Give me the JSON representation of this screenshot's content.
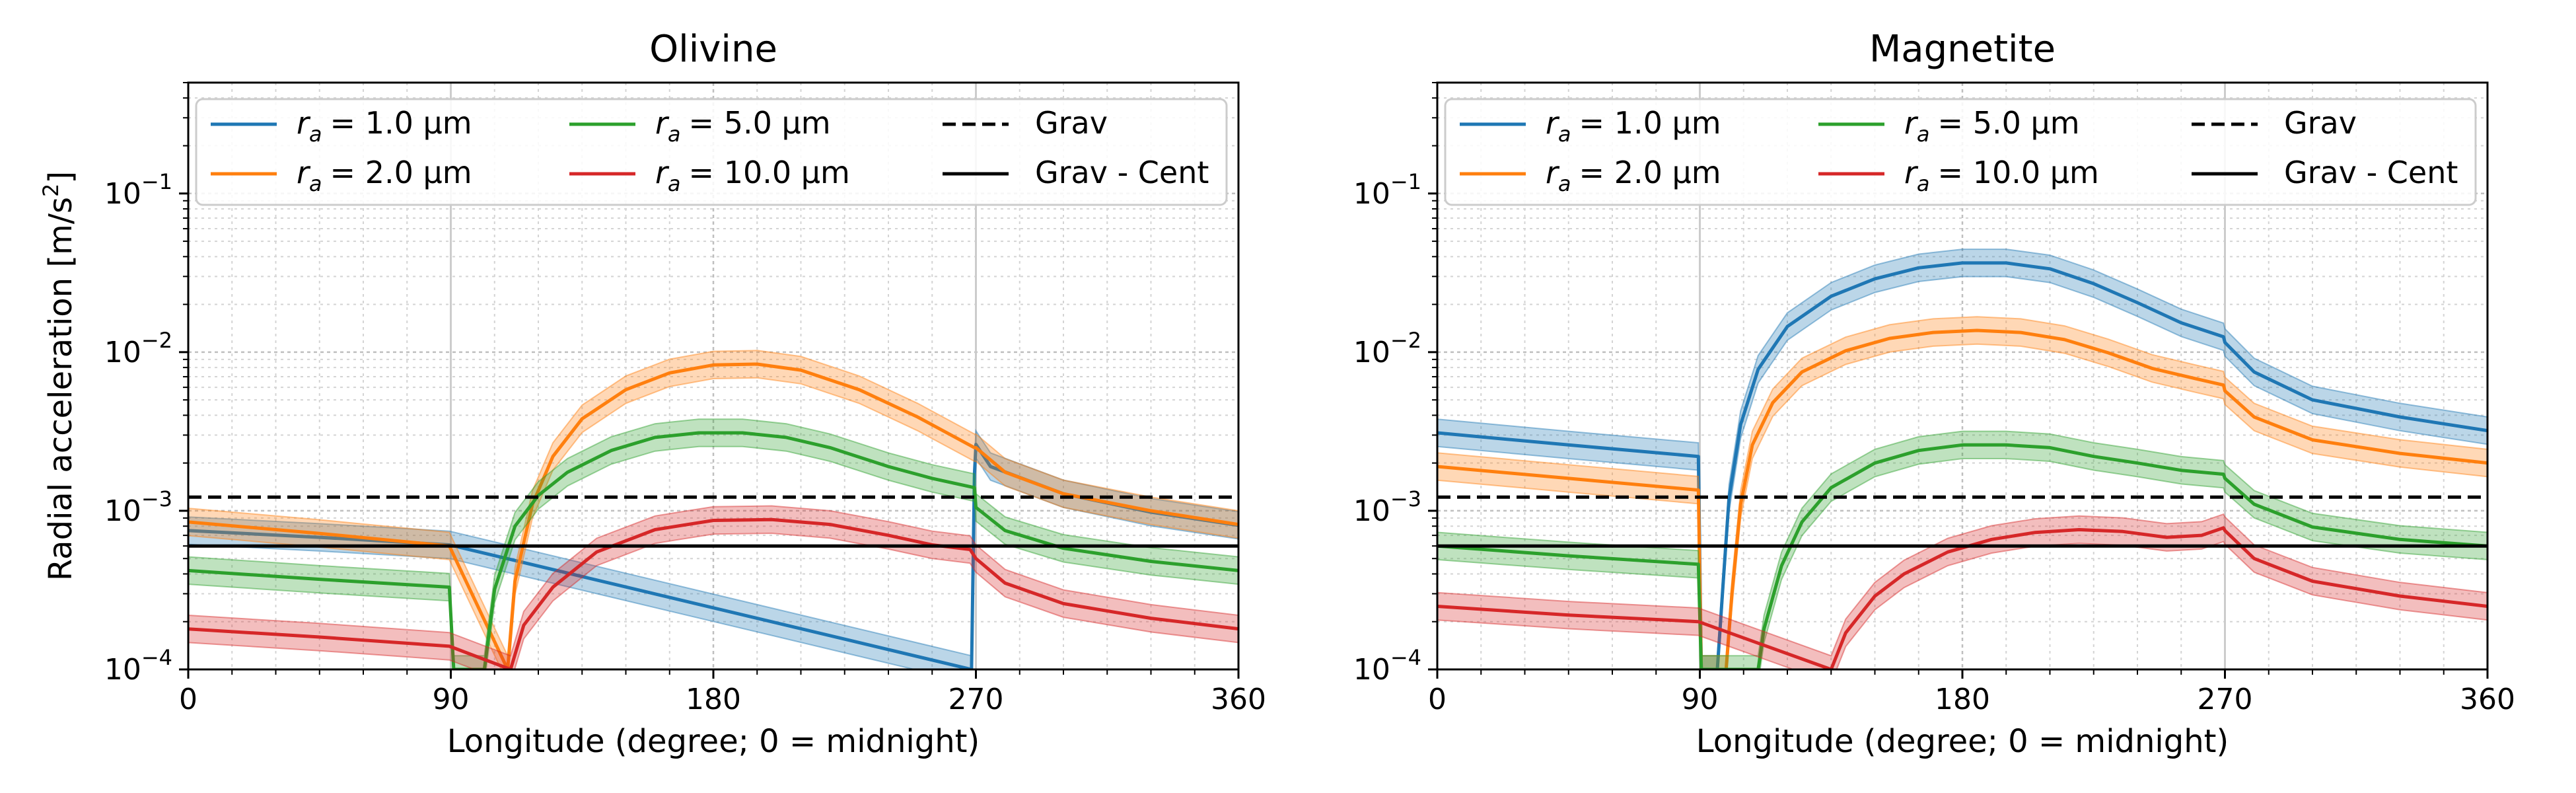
{
  "chart_data": [
    {
      "type": "line",
      "title": "Olivine",
      "xlabel": "Longitude (degree; 0 = midnight)",
      "ylabel": "Radial acceleration [m/s²]",
      "xlim": [
        0,
        360
      ],
      "ylim": [
        0.0001,
        0.5
      ],
      "yscale": "log",
      "xticks": [
        0,
        90,
        180,
        270,
        360
      ],
      "xtick_labels": [
        "0",
        "90",
        "180",
        "270",
        "360"
      ],
      "yticks": [
        0.0001,
        0.001,
        0.01,
        0.1
      ],
      "ytick_labels": [
        {
          "base": "10",
          "exp": "−4"
        },
        {
          "base": "10",
          "exp": "−3"
        },
        {
          "base": "10",
          "exp": "−2"
        },
        {
          "base": "10",
          "exp": "−1"
        }
      ],
      "grid": true,
      "legend_position": "top",
      "grav": 0.00122,
      "grav_cent": 0.0006,
      "series": [
        {
          "name": "r_a = 1.0 µm",
          "radius": "1.0 µm",
          "color": "#1f77b4",
          "x": [
            0,
            45,
            89.5,
            268.5,
            269.5,
            270,
            275,
            300,
            330,
            360
          ],
          "y": [
            0.00075,
            0.00068,
            0.00061,
            0.0001,
            0.0017,
            0.00262,
            0.0019,
            0.00128,
            0.00098,
            0.00081
          ],
          "band": 0.22
        },
        {
          "name": "r_a = 2.0 µm",
          "radius": "2.0 µm",
          "color": "#ff7f0e",
          "x": [
            0,
            45,
            89.5,
            109.5,
            112,
            118,
            125,
            135,
            150,
            165,
            180,
            195,
            210,
            230,
            250,
            269.5,
            270,
            280,
            300,
            330,
            360
          ],
          "y": [
            0.00085,
            0.00072,
            0.0006,
            0.0001,
            0.00036,
            0.0011,
            0.0022,
            0.0038,
            0.0058,
            0.0074,
            0.0083,
            0.0084,
            0.0077,
            0.0058,
            0.0039,
            0.0025,
            0.0025,
            0.00175,
            0.00128,
            0.001,
            0.00082
          ],
          "band": 0.22
        },
        {
          "name": "r_a = 5.0 µm",
          "radius": "5.0 µm",
          "color": "#2ca02c",
          "x": [
            0,
            45,
            89.5,
            91,
            101.5,
            105,
            112,
            120,
            130,
            145,
            160,
            175,
            190,
            205,
            220,
            240,
            255,
            269.5,
            270,
            280,
            300,
            330,
            360
          ],
          "y": [
            0.00042,
            0.00037,
            0.00033,
            0.0001,
            0.0001,
            0.00032,
            0.0008,
            0.00125,
            0.00175,
            0.0024,
            0.0029,
            0.0031,
            0.0031,
            0.0029,
            0.0025,
            0.0019,
            0.0016,
            0.0014,
            0.00105,
            0.00075,
            0.00058,
            0.00048,
            0.00042
          ],
          "band": 0.22
        },
        {
          "name": "r_a = 10.0 µm",
          "radius": "10.0 µm",
          "color": "#d62728",
          "x": [
            0,
            45,
            89.5,
            110.5,
            115,
            125,
            140,
            160,
            180,
            200,
            220,
            240,
            255,
            268,
            270,
            280,
            300,
            330,
            360
          ],
          "y": [
            0.00018,
            0.00016,
            0.00014,
            0.0001,
            0.00019,
            0.00033,
            0.00055,
            0.00076,
            0.00087,
            0.00088,
            0.00082,
            0.0007,
            0.00061,
            0.00057,
            0.0005,
            0.00035,
            0.00026,
            0.00021,
            0.00018
          ],
          "band": 0.22
        }
      ]
    },
    {
      "type": "line",
      "title": "Magnetite",
      "xlabel": "Longitude (degree; 0 = midnight)",
      "ylabel": "",
      "xlim": [
        0,
        360
      ],
      "ylim": [
        0.0001,
        0.5
      ],
      "yscale": "log",
      "xticks": [
        0,
        90,
        180,
        270,
        360
      ],
      "xtick_labels": [
        "0",
        "90",
        "180",
        "270",
        "360"
      ],
      "yticks": [
        0.0001,
        0.001,
        0.01,
        0.1
      ],
      "ytick_labels": [
        {
          "base": "10",
          "exp": "−4"
        },
        {
          "base": "10",
          "exp": "−3"
        },
        {
          "base": "10",
          "exp": "−2"
        },
        {
          "base": "10",
          "exp": "−1"
        }
      ],
      "grid": true,
      "legend_position": "top",
      "grav": 0.00122,
      "grav_cent": 0.0006,
      "series": [
        {
          "name": "r_a = 1.0 µm",
          "radius": "1.0 µm",
          "color": "#1f77b4",
          "x": [
            0,
            45,
            89.5,
            90.5,
            96,
            98,
            100,
            104,
            110,
            120,
            135,
            150,
            165,
            180,
            195,
            210,
            225,
            240,
            255,
            269.5,
            270,
            280,
            300,
            330,
            360
          ],
          "y": [
            0.0031,
            0.0026,
            0.0022,
            0.0001,
            0.0001,
            0.00035,
            0.0012,
            0.0035,
            0.0078,
            0.0145,
            0.0225,
            0.029,
            0.034,
            0.0365,
            0.0365,
            0.0335,
            0.027,
            0.0205,
            0.0153,
            0.0125,
            0.0115,
            0.0075,
            0.005,
            0.0039,
            0.0032
          ],
          "band": 0.22
        },
        {
          "name": "r_a = 2.0 µm",
          "radius": "2.0 µm",
          "color": "#ff7f0e",
          "x": [
            0,
            45,
            89.5,
            90.5,
            99,
            101,
            104,
            108,
            115,
            125,
            140,
            155,
            170,
            185,
            200,
            215,
            230,
            245,
            260,
            269.5,
            270,
            280,
            300,
            330,
            360
          ],
          "y": [
            0.0019,
            0.0016,
            0.00135,
            0.0001,
            0.0001,
            0.0003,
            0.0011,
            0.0026,
            0.0048,
            0.0075,
            0.0102,
            0.0122,
            0.0133,
            0.0137,
            0.0133,
            0.012,
            0.0099,
            0.0079,
            0.0068,
            0.0062,
            0.0057,
            0.0039,
            0.0028,
            0.0023,
            0.002
          ],
          "band": 0.22
        },
        {
          "name": "r_a = 5.0 µm",
          "radius": "5.0 µm",
          "color": "#2ca02c",
          "x": [
            0,
            45,
            89.5,
            90.5,
            110,
            112,
            118,
            125,
            135,
            150,
            165,
            180,
            195,
            210,
            225,
            240,
            255,
            269.5,
            270,
            280,
            300,
            330,
            360
          ],
          "y": [
            0.0006,
            0.00052,
            0.00046,
            0.0001,
            0.0001,
            0.00018,
            0.00045,
            0.00085,
            0.0014,
            0.002,
            0.0024,
            0.0026,
            0.0026,
            0.0025,
            0.0022,
            0.002,
            0.0018,
            0.0017,
            0.0016,
            0.0011,
            0.00079,
            0.00066,
            0.0006
          ],
          "band": 0.22
        },
        {
          "name": "r_a = 10.0 µm",
          "radius": "10.0 µm",
          "color": "#d62728",
          "x": [
            0,
            45,
            89.5,
            135,
            140,
            150,
            160,
            175,
            190,
            205,
            220,
            235,
            250,
            262,
            269.5,
            270,
            280,
            300,
            330,
            360
          ],
          "y": [
            0.00025,
            0.00022,
            0.0002,
            0.0001,
            0.00017,
            0.00029,
            0.0004,
            0.00055,
            0.00066,
            0.00073,
            0.00076,
            0.00074,
            0.00068,
            0.0007,
            0.00078,
            0.00075,
            0.0005,
            0.00036,
            0.00029,
            0.00025
          ],
          "band": 0.22
        }
      ]
    }
  ],
  "legend": {
    "col1": [
      {
        "sym": "r",
        "sub": "a",
        "value": "= 1.0 µm",
        "color": "#1f77b4"
      },
      {
        "sym": "r",
        "sub": "a",
        "value": "= 2.0 µm",
        "color": "#ff7f0e"
      }
    ],
    "col2": [
      {
        "sym": "r",
        "sub": "a",
        "value": "= 5.0 µm",
        "color": "#2ca02c"
      },
      {
        "sym": "r",
        "sub": "a",
        "value": "= 10.0 µm",
        "color": "#d62728"
      }
    ],
    "col3": [
      {
        "label": "Grav",
        "style": "dashed",
        "color": "#000000"
      },
      {
        "label": "Grav - Cent",
        "style": "solid",
        "color": "#000000"
      }
    ]
  }
}
